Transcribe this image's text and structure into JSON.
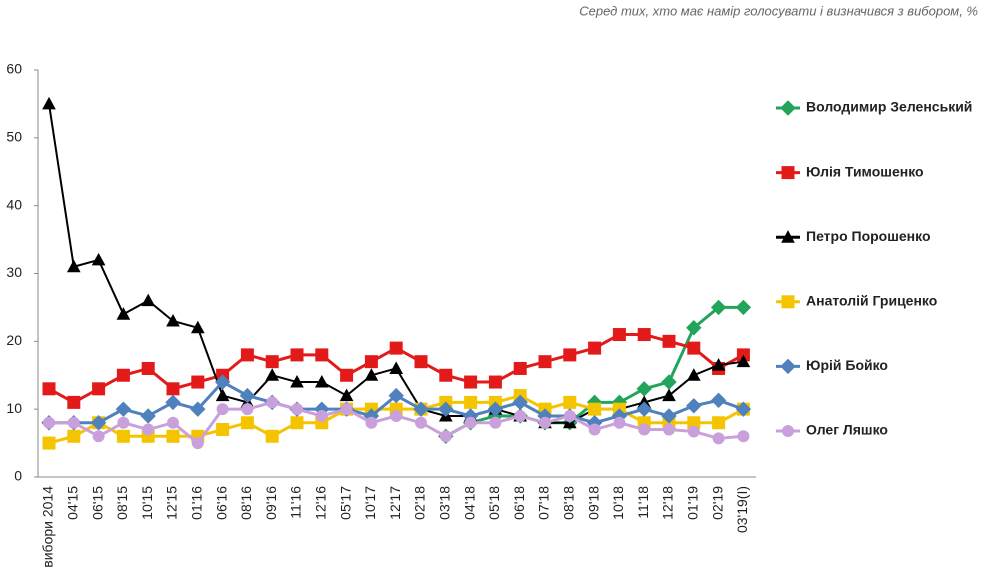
{
  "chart_data": {
    "type": "line",
    "subtitle": "Серед тих, хто має намір голосувати і визначився з вибором, %",
    "categories": [
      "вибори 2014",
      "04'15",
      "06'15",
      "08'15",
      "10'15",
      "12'15",
      "01'16",
      "06'16",
      "08'16",
      "09'16",
      "11'16",
      "12'16",
      "05'17",
      "10'17",
      "12'17",
      "02'18",
      "03'18",
      "04'18",
      "05'18",
      "06'18",
      "07'18",
      "08'18",
      "09'18",
      "10'18",
      "11'18",
      "12'18",
      "01'19",
      "02'19",
      "03'19(I)"
    ],
    "series": [
      {
        "name": "Володимир Зеленський",
        "color": "#22a55a",
        "marker": "diamond",
        "values": [
          null,
          null,
          null,
          null,
          null,
          null,
          null,
          null,
          null,
          null,
          null,
          null,
          null,
          null,
          null,
          null,
          6,
          8,
          9,
          9,
          8,
          8,
          11,
          11,
          13,
          14,
          22,
          25,
          25
        ]
      },
      {
        "name": "Юлія Тимошенко",
        "color": "#e31a1a",
        "marker": "square",
        "values": [
          13,
          11,
          13,
          15,
          16,
          13,
          14,
          15,
          18,
          17,
          18,
          18,
          15,
          17,
          19,
          17,
          15,
          14,
          14,
          16,
          17,
          18,
          19,
          21,
          21,
          20,
          19,
          16,
          18
        ]
      },
      {
        "name": "Петро Порошенко",
        "color": "#000000",
        "marker": "triangle",
        "values": [
          55,
          31,
          32,
          24,
          26,
          23,
          22,
          12,
          11,
          15,
          14,
          14,
          12,
          15,
          16,
          10,
          9,
          9,
          10,
          9,
          8,
          8,
          10,
          10,
          11,
          12,
          15,
          16.5,
          17
        ]
      },
      {
        "name": "Анатолій Гриценко",
        "color": "#f5c400",
        "marker": "square",
        "values": [
          5,
          6,
          8,
          6,
          6,
          6,
          6,
          7,
          8,
          6,
          8,
          8,
          10,
          10,
          10,
          10,
          11,
          11,
          11,
          12,
          10,
          11,
          10,
          10,
          8,
          8,
          8,
          8,
          10
        ]
      },
      {
        "name": "Юрій Бойко",
        "color": "#4f81bd",
        "marker": "diamond",
        "values": [
          8,
          8,
          8,
          10,
          9,
          11,
          10,
          14,
          12,
          11,
          10,
          10,
          10,
          9,
          12,
          10,
          10,
          9,
          10,
          11,
          9,
          9,
          8,
          9,
          10,
          9,
          10.5,
          11.3,
          10
        ]
      },
      {
        "name": "Олег Ляшко",
        "color": "#c9a0dc",
        "marker": "circle",
        "values": [
          8,
          8,
          6,
          8,
          7,
          8,
          5,
          10,
          10,
          11,
          10,
          9,
          10,
          8,
          9,
          8,
          6,
          8,
          8,
          9,
          8,
          9,
          7,
          8,
          7,
          7,
          6.7,
          5.7,
          6
        ]
      }
    ],
    "ylim": [
      0,
      60
    ],
    "yticks": [
      0,
      10,
      20,
      30,
      40,
      50,
      60
    ]
  }
}
